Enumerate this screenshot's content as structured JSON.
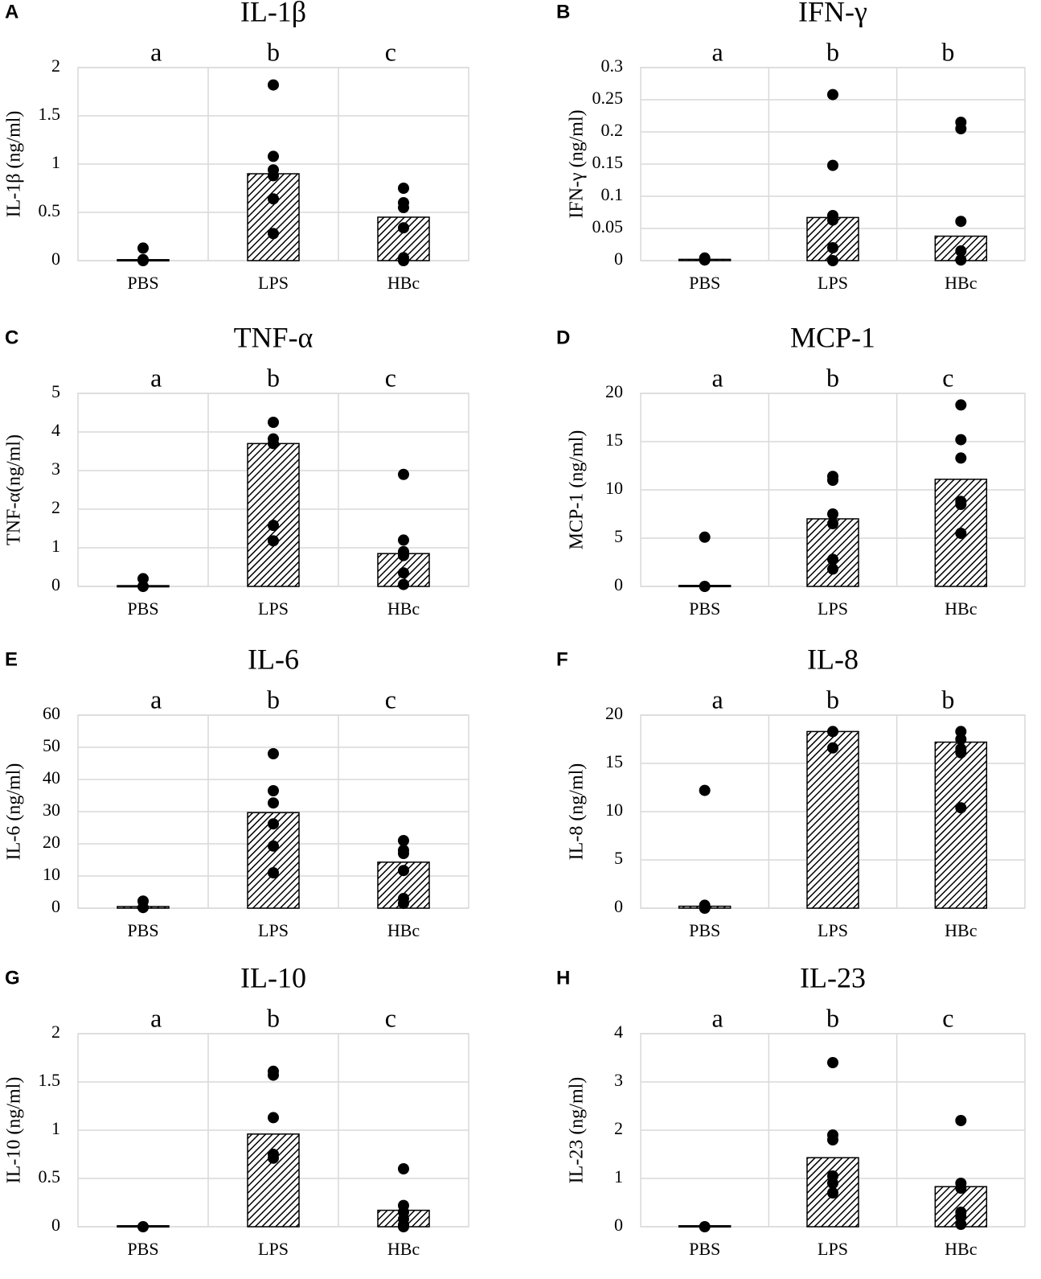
{
  "chart_data": [
    {
      "type": "bar",
      "panel": "A",
      "title": "IL-1β",
      "y_label": "IL-1β (ng/ml)",
      "categories": [
        "PBS",
        "LPS",
        "HBc"
      ],
      "significance": [
        "a",
        "b",
        "c"
      ],
      "values": [
        0.01,
        0.9,
        0.45
      ],
      "points": [
        [
          0.13,
          0,
          0.01
        ],
        [
          1.82,
          1.08,
          0.94,
          0.88,
          0.64,
          0.28
        ],
        [
          0.75,
          0.6,
          0.55,
          0.34,
          0.03,
          0
        ]
      ],
      "ylim": [
        0,
        2
      ],
      "yticks": [
        0,
        0.5,
        1,
        1.5,
        2
      ],
      "grid": true
    },
    {
      "type": "bar",
      "panel": "B",
      "title": "IFN-γ",
      "y_label": "IFN-γ (ng/ml)",
      "categories": [
        "PBS",
        "LPS",
        "HBc"
      ],
      "significance": [
        "a",
        "b",
        "b"
      ],
      "values": [
        0.002,
        0.067,
        0.038
      ],
      "points": [
        [
          0.004,
          0.001
        ],
        [
          0.258,
          0.148,
          0.07,
          0.063,
          0.02,
          0
        ],
        [
          0.215,
          0.205,
          0.061,
          0.015,
          0.001
        ]
      ],
      "ylim": [
        0,
        0.3
      ],
      "yticks": [
        0,
        0.05,
        0.1,
        0.15,
        0.2,
        0.25,
        0.3
      ],
      "grid": true
    },
    {
      "type": "bar",
      "panel": "C",
      "title": "TNF-α",
      "y_label": "TNF-α(ng/ml)",
      "categories": [
        "PBS",
        "LPS",
        "HBc"
      ],
      "significance": [
        "a",
        "b",
        "c"
      ],
      "values": [
        0.02,
        3.7,
        0.85
      ],
      "points": [
        [
          0.2,
          0
        ],
        [
          4.25,
          3.82,
          3.7,
          1.58,
          1.18
        ],
        [
          2.9,
          1.2,
          0.9,
          0.8,
          0.35,
          0.05
        ]
      ],
      "ylim": [
        0,
        5
      ],
      "yticks": [
        0,
        1,
        2,
        3,
        4,
        5
      ],
      "grid": true
    },
    {
      "type": "bar",
      "panel": "D",
      "title": "MCP-1",
      "y_label": "MCP-1 (ng/ml)",
      "categories": [
        "PBS",
        "LPS",
        "HBc"
      ],
      "significance": [
        "a",
        "b",
        "c"
      ],
      "values": [
        0.1,
        7,
        11.1
      ],
      "points": [
        [
          5.1,
          0
        ],
        [
          11.4,
          11,
          7.5,
          6.5,
          2.8,
          1.8
        ],
        [
          18.8,
          15.2,
          13.3,
          8.8,
          8.5,
          5.5
        ]
      ],
      "ylim": [
        0,
        20
      ],
      "yticks": [
        0,
        5,
        10,
        15,
        20
      ],
      "grid": true
    },
    {
      "type": "bar",
      "panel": "E",
      "title": "IL-6",
      "y_label": "IL-6 (ng/ml)",
      "categories": [
        "PBS",
        "LPS",
        "HBc"
      ],
      "significance": [
        "a",
        "b",
        "c"
      ],
      "values": [
        0.5,
        29.7,
        14.3
      ],
      "points": [
        [
          2.2,
          0.2
        ],
        [
          48,
          36.5,
          32.7,
          26.2,
          19.3,
          11
        ],
        [
          21,
          18,
          17,
          11.7,
          3,
          1.5
        ]
      ],
      "ylim": [
        0,
        60
      ],
      "yticks": [
        0,
        10,
        20,
        30,
        40,
        50,
        60
      ],
      "grid": true
    },
    {
      "type": "bar",
      "panel": "F",
      "title": "IL-8",
      "y_label": "IL-8 (ng/ml)",
      "categories": [
        "PBS",
        "LPS",
        "HBc"
      ],
      "significance": [
        "a",
        "b",
        "b"
      ],
      "values": [
        0.2,
        18.3,
        17.2
      ],
      "points": [
        [
          12.2,
          0.3,
          0
        ],
        [
          18.3,
          16.6
        ],
        [
          18.3,
          17.5,
          16.5,
          16.1,
          10.4
        ]
      ],
      "ylim": [
        0,
        20
      ],
      "yticks": [
        0,
        5,
        10,
        15,
        20
      ],
      "grid": true
    },
    {
      "type": "bar",
      "panel": "G",
      "title": "IL-10",
      "y_label": "IL-10 (ng/ml)",
      "categories": [
        "PBS",
        "LPS",
        "HBc"
      ],
      "significance": [
        "a",
        "b",
        "c"
      ],
      "values": [
        0.01,
        0.96,
        0.17
      ],
      "points": [
        [
          0
        ],
        [
          1.61,
          1.57,
          1.13,
          0.75,
          0.71
        ],
        [
          0.6,
          0.22,
          0.15,
          0.08,
          0.02,
          0
        ]
      ],
      "ylim": [
        0,
        2
      ],
      "yticks": [
        0,
        0.5,
        1,
        1.5,
        2
      ],
      "grid": true
    },
    {
      "type": "bar",
      "panel": "H",
      "title": "IL-23",
      "y_label": "IL-23 (ng/ml)",
      "categories": [
        "PBS",
        "LPS",
        "HBc"
      ],
      "significance": [
        "a",
        "b",
        "c"
      ],
      "values": [
        0.02,
        1.43,
        0.83
      ],
      "points": [
        [
          0
        ],
        [
          3.4,
          1.9,
          1.8,
          1.05,
          0.9,
          0.7
        ],
        [
          2.2,
          0.9,
          0.8,
          0.3,
          0.2,
          0.05
        ]
      ],
      "ylim": [
        0,
        4
      ],
      "yticks": [
        0,
        1,
        2,
        3,
        4
      ],
      "grid": true
    }
  ]
}
